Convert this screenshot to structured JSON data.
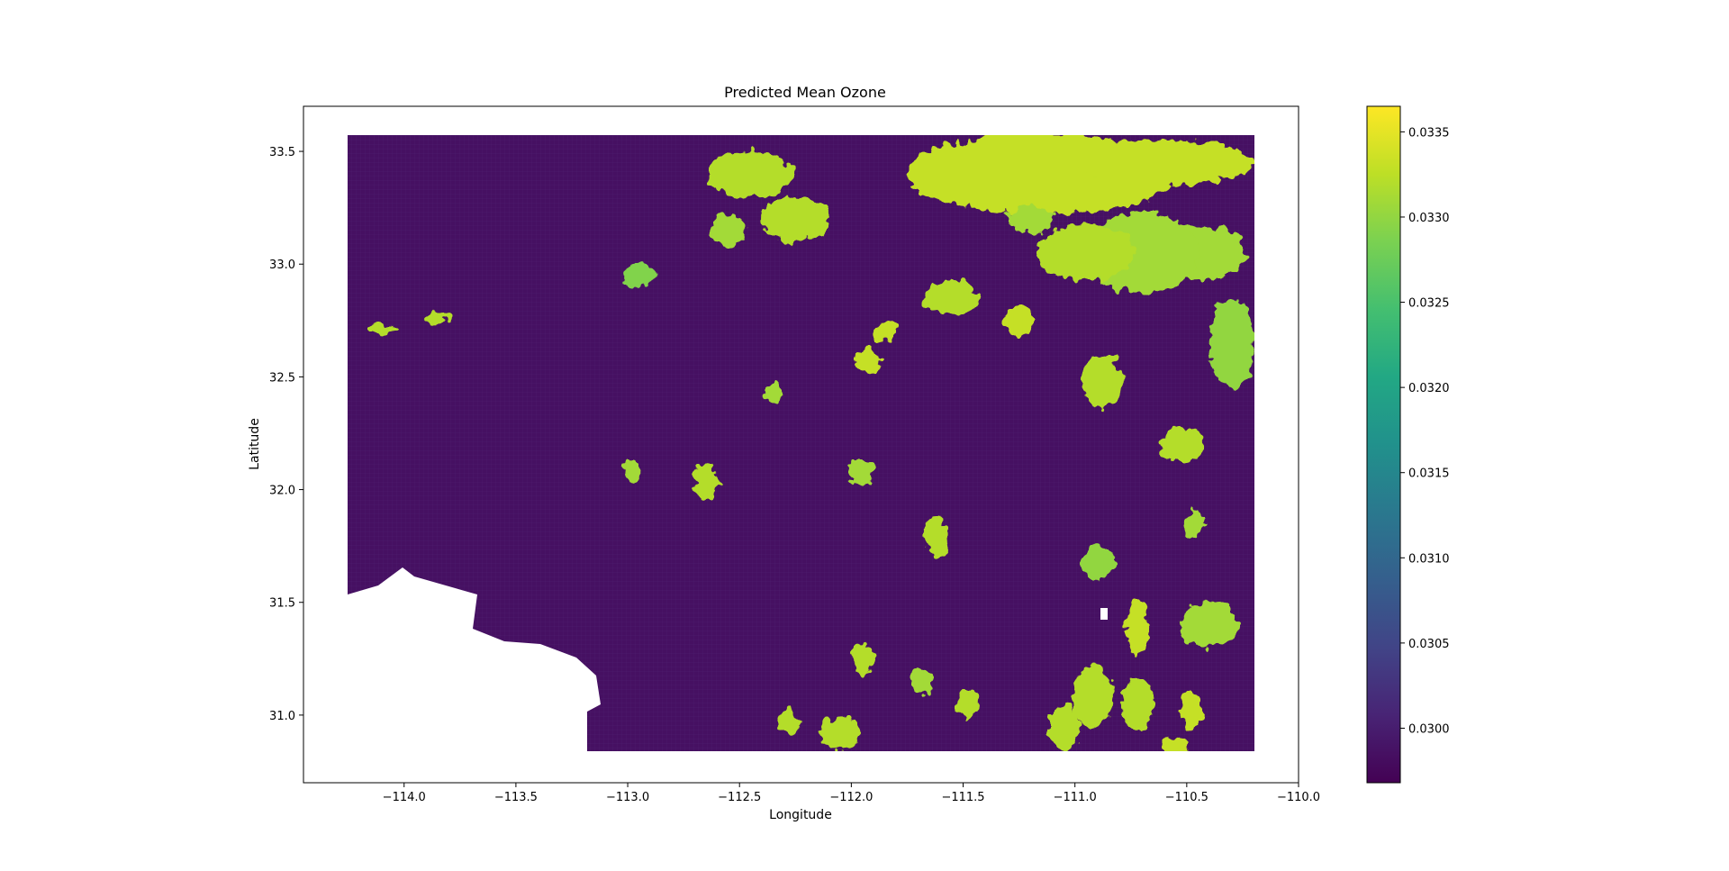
{
  "chart_data": {
    "type": "heatmap",
    "title": "Predicted Mean Ozone",
    "xlabel": "Longitude",
    "ylabel": "Latitude",
    "xlim": [
      -114.45,
      -110.0
    ],
    "ylim": [
      30.7,
      33.7
    ],
    "data_extent": {
      "lon": [
        -114.22,
        -110.15
      ],
      "lat": [
        30.79,
        33.56
      ]
    },
    "xticks": [
      -114.0,
      -113.5,
      -113.0,
      -112.5,
      -112.0,
      -111.5,
      -111.0,
      -110.5,
      -110.0
    ],
    "xtick_labels": [
      "−114.0",
      "−113.5",
      "−113.0",
      "−112.5",
      "−112.0",
      "−111.5",
      "−111.0",
      "−110.5",
      "−110.0"
    ],
    "yticks": [
      31.0,
      31.5,
      32.0,
      32.5,
      33.0,
      33.5
    ],
    "ytick_labels": [
      "31.0",
      "31.5",
      "32.0",
      "32.5",
      "33.0",
      "33.5"
    ],
    "colorbar": {
      "colormap": "viridis",
      "range": [
        0.02968,
        0.03365
      ],
      "ticks": [
        0.03,
        0.0305,
        0.031,
        0.0315,
        0.032,
        0.0325,
        0.033,
        0.0335
      ],
      "tick_labels": [
        "0.0300",
        "0.0305",
        "0.0310",
        "0.0315",
        "0.0320",
        "0.0325",
        "0.0330",
        "0.0335"
      ]
    },
    "background_value": 0.02985,
    "high_value_regions": [
      {
        "lon": -111.15,
        "lat": 33.4,
        "rlon": 0.6,
        "rlat": 0.18,
        "value": 0.0333
      },
      {
        "lon": -110.6,
        "lat": 33.45,
        "rlon": 0.4,
        "rlat": 0.1,
        "value": 0.0333
      },
      {
        "lon": -110.45,
        "lat": 33.05,
        "rlon": 0.22,
        "rlat": 0.12,
        "value": 0.0331
      },
      {
        "lon": -110.7,
        "lat": 33.05,
        "rlon": 0.25,
        "rlat": 0.18,
        "value": 0.0331
      },
      {
        "lon": -110.3,
        "lat": 32.65,
        "rlon": 0.1,
        "rlat": 0.2,
        "value": 0.033
      },
      {
        "lon": -110.95,
        "lat": 33.05,
        "rlon": 0.22,
        "rlat": 0.12,
        "value": 0.0332
      },
      {
        "lon": -112.45,
        "lat": 33.4,
        "rlon": 0.2,
        "rlat": 0.1,
        "value": 0.0332
      },
      {
        "lon": -112.25,
        "lat": 33.2,
        "rlon": 0.15,
        "rlat": 0.1,
        "value": 0.0332
      },
      {
        "lon": -112.55,
        "lat": 33.15,
        "rlon": 0.08,
        "rlat": 0.07,
        "value": 0.0331
      },
      {
        "lon": -112.95,
        "lat": 32.95,
        "rlon": 0.07,
        "rlat": 0.05,
        "value": 0.0329
      },
      {
        "lon": -111.55,
        "lat": 32.85,
        "rlon": 0.12,
        "rlat": 0.08,
        "value": 0.0332
      },
      {
        "lon": -111.25,
        "lat": 32.75,
        "rlon": 0.07,
        "rlat": 0.07,
        "value": 0.0333
      },
      {
        "lon": -111.85,
        "lat": 32.7,
        "rlon": 0.05,
        "rlat": 0.05,
        "value": 0.0333
      },
      {
        "lon": -110.88,
        "lat": 32.48,
        "rlon": 0.09,
        "rlat": 0.12,
        "value": 0.0332
      },
      {
        "lon": -110.52,
        "lat": 32.2,
        "rlon": 0.1,
        "rlat": 0.08,
        "value": 0.0332
      },
      {
        "lon": -112.35,
        "lat": 32.43,
        "rlon": 0.05,
        "rlat": 0.04,
        "value": 0.0331
      },
      {
        "lon": -111.96,
        "lat": 32.08,
        "rlon": 0.06,
        "rlat": 0.06,
        "value": 0.0331
      },
      {
        "lon": -112.65,
        "lat": 32.03,
        "rlon": 0.05,
        "rlat": 0.08,
        "value": 0.0332
      },
      {
        "lon": -112.98,
        "lat": 32.08,
        "rlon": 0.04,
        "rlat": 0.05,
        "value": 0.0331
      },
      {
        "lon": -111.62,
        "lat": 31.8,
        "rlon": 0.05,
        "rlat": 0.09,
        "value": 0.0332
      },
      {
        "lon": -110.9,
        "lat": 31.68,
        "rlon": 0.07,
        "rlat": 0.08,
        "value": 0.033
      },
      {
        "lon": -110.4,
        "lat": 31.4,
        "rlon": 0.13,
        "rlat": 0.1,
        "value": 0.0331
      },
      {
        "lon": -110.72,
        "lat": 31.39,
        "rlon": 0.05,
        "rlat": 0.12,
        "value": 0.0333
      },
      {
        "lon": -110.47,
        "lat": 31.85,
        "rlon": 0.04,
        "rlat": 0.06,
        "value": 0.0331
      },
      {
        "lon": -110.92,
        "lat": 31.08,
        "rlon": 0.09,
        "rlat": 0.14,
        "value": 0.0332
      },
      {
        "lon": -110.72,
        "lat": 31.05,
        "rlon": 0.07,
        "rlat": 0.12,
        "value": 0.0332
      },
      {
        "lon": -110.48,
        "lat": 31.02,
        "rlon": 0.05,
        "rlat": 0.09,
        "value": 0.0333
      },
      {
        "lon": -110.55,
        "lat": 30.85,
        "rlon": 0.06,
        "rlat": 0.05,
        "value": 0.0333
      },
      {
        "lon": -111.05,
        "lat": 30.95,
        "rlon": 0.07,
        "rlat": 0.1,
        "value": 0.0332
      },
      {
        "lon": -111.48,
        "lat": 31.05,
        "rlon": 0.05,
        "rlat": 0.06,
        "value": 0.0332
      },
      {
        "lon": -111.95,
        "lat": 31.25,
        "rlon": 0.05,
        "rlat": 0.07,
        "value": 0.0332
      },
      {
        "lon": -112.05,
        "lat": 30.92,
        "rlon": 0.09,
        "rlat": 0.07,
        "value": 0.0332
      },
      {
        "lon": -112.28,
        "lat": 30.97,
        "rlon": 0.05,
        "rlat": 0.06,
        "value": 0.0332
      },
      {
        "lon": -111.68,
        "lat": 31.15,
        "rlon": 0.05,
        "rlat": 0.06,
        "value": 0.0331
      },
      {
        "lon": -113.85,
        "lat": 32.76,
        "rlon": 0.07,
        "rlat": 0.02,
        "value": 0.0332
      },
      {
        "lon": -114.1,
        "lat": 32.71,
        "rlon": 0.07,
        "rlat": 0.02,
        "value": 0.0332
      },
      {
        "lon": -111.92,
        "lat": 32.57,
        "rlon": 0.05,
        "rlat": 0.06,
        "value": 0.0333
      },
      {
        "lon": -111.2,
        "lat": 33.2,
        "rlon": 0.1,
        "rlat": 0.06,
        "value": 0.0331
      }
    ],
    "masked_regions": "Gulf of California coastline (lower-left) and a small pocket near (−110.84, 31.42)"
  }
}
